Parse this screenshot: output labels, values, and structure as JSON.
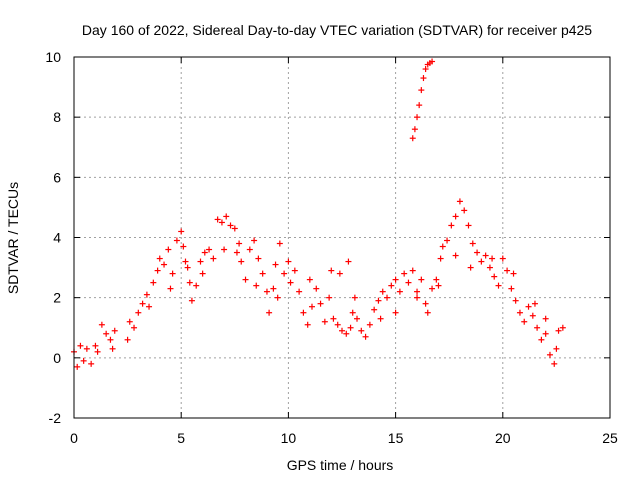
{
  "chart_data": {
    "type": "scatter",
    "title": "Day 160 of 2022, Sidereal Day-to-day VTEC variation (SDTVAR) for receiver p425",
    "xlabel": "GPS time / hours",
    "ylabel": "SDTVAR / TECUs",
    "xlim": [
      0,
      25
    ],
    "ylim": [
      -2,
      10
    ],
    "xticks": [
      0,
      5,
      10,
      15,
      20,
      25
    ],
    "xtick_labels": [
      "0",
      "5",
      "10",
      "15",
      "20",
      "25"
    ],
    "yticks": [
      -2,
      0,
      2,
      4,
      6,
      8,
      10
    ],
    "ytick_labels": [
      "-2",
      "0",
      "2",
      "4",
      "6",
      "8",
      "10"
    ],
    "grid": true,
    "marker": "+",
    "series_color": "#ff0000",
    "series": [
      {
        "name": "SDTVAR",
        "points": [
          [
            0.0,
            0.2
          ],
          [
            0.15,
            -0.3
          ],
          [
            0.3,
            0.4
          ],
          [
            0.45,
            -0.1
          ],
          [
            0.6,
            0.3
          ],
          [
            0.8,
            -0.2
          ],
          [
            1.0,
            0.4
          ],
          [
            1.1,
            0.2
          ],
          [
            1.3,
            1.1
          ],
          [
            1.5,
            0.8
          ],
          [
            1.7,
            0.6
          ],
          [
            1.8,
            0.3
          ],
          [
            1.9,
            0.9
          ],
          [
            2.5,
            0.6
          ],
          [
            2.6,
            1.2
          ],
          [
            2.8,
            1.0
          ],
          [
            3.0,
            1.5
          ],
          [
            3.2,
            1.8
          ],
          [
            3.4,
            2.1
          ],
          [
            3.5,
            1.7
          ],
          [
            3.7,
            2.5
          ],
          [
            3.9,
            2.9
          ],
          [
            4.0,
            3.3
          ],
          [
            4.2,
            3.1
          ],
          [
            4.4,
            3.6
          ],
          [
            4.6,
            2.8
          ],
          [
            4.8,
            3.9
          ],
          [
            5.0,
            4.2
          ],
          [
            5.1,
            3.7
          ],
          [
            5.2,
            3.2
          ],
          [
            5.4,
            2.5
          ],
          [
            5.5,
            1.9
          ],
          [
            5.7,
            2.4
          ],
          [
            5.9,
            3.2
          ],
          [
            6.1,
            3.5
          ],
          [
            6.3,
            3.6
          ],
          [
            6.5,
            3.3
          ],
          [
            6.7,
            4.6
          ],
          [
            6.9,
            4.5
          ],
          [
            7.1,
            4.7
          ],
          [
            7.3,
            4.4
          ],
          [
            7.5,
            4.3
          ],
          [
            7.6,
            3.5
          ],
          [
            7.7,
            3.8
          ],
          [
            7.8,
            3.2
          ],
          [
            8.0,
            2.6
          ],
          [
            8.2,
            3.6
          ],
          [
            8.4,
            3.9
          ],
          [
            8.6,
            3.3
          ],
          [
            8.8,
            2.8
          ],
          [
            9.0,
            2.2
          ],
          [
            9.1,
            1.5
          ],
          [
            9.3,
            2.3
          ],
          [
            9.4,
            3.1
          ],
          [
            9.6,
            3.8
          ],
          [
            9.8,
            2.8
          ],
          [
            10.0,
            3.2
          ],
          [
            10.1,
            2.5
          ],
          [
            10.3,
            2.9
          ],
          [
            10.5,
            2.2
          ],
          [
            10.7,
            1.5
          ],
          [
            10.9,
            1.1
          ],
          [
            11.1,
            1.7
          ],
          [
            11.3,
            2.3
          ],
          [
            11.5,
            1.8
          ],
          [
            11.7,
            1.2
          ],
          [
            11.9,
            2.0
          ],
          [
            12.1,
            1.3
          ],
          [
            12.3,
            1.1
          ],
          [
            12.5,
            0.9
          ],
          [
            12.7,
            0.8
          ],
          [
            12.9,
            1.0
          ],
          [
            13.0,
            1.5
          ],
          [
            13.2,
            1.3
          ],
          [
            13.4,
            0.9
          ],
          [
            13.6,
            0.7
          ],
          [
            13.8,
            1.1
          ],
          [
            14.0,
            1.6
          ],
          [
            14.2,
            1.9
          ],
          [
            14.4,
            2.2
          ],
          [
            14.6,
            2.0
          ],
          [
            14.8,
            2.4
          ],
          [
            15.0,
            2.6
          ],
          [
            15.2,
            2.2
          ],
          [
            15.4,
            2.8
          ],
          [
            15.6,
            2.5
          ],
          [
            15.8,
            2.9
          ],
          [
            16.0,
            2.2
          ],
          [
            16.2,
            2.6
          ],
          [
            16.4,
            1.8
          ],
          [
            16.5,
            1.5
          ],
          [
            16.7,
            2.3
          ],
          [
            16.9,
            2.6
          ],
          [
            17.1,
            3.3
          ],
          [
            17.2,
            3.7
          ],
          [
            17.4,
            3.9
          ],
          [
            17.6,
            4.4
          ],
          [
            17.8,
            4.7
          ],
          [
            18.0,
            5.2
          ],
          [
            18.2,
            4.9
          ],
          [
            18.4,
            4.4
          ],
          [
            18.6,
            3.8
          ],
          [
            18.8,
            3.5
          ],
          [
            19.0,
            3.2
          ],
          [
            19.2,
            3.4
          ],
          [
            19.4,
            3.0
          ],
          [
            19.6,
            2.7
          ],
          [
            19.8,
            2.4
          ],
          [
            20.0,
            3.3
          ],
          [
            20.2,
            2.9
          ],
          [
            20.4,
            2.3
          ],
          [
            20.6,
            1.9
          ],
          [
            20.8,
            1.5
          ],
          [
            21.0,
            1.2
          ],
          [
            21.2,
            1.7
          ],
          [
            21.4,
            1.4
          ],
          [
            21.6,
            1.0
          ],
          [
            21.8,
            0.6
          ],
          [
            22.0,
            0.8
          ],
          [
            22.2,
            0.1
          ],
          [
            22.4,
            -0.2
          ],
          [
            22.5,
            0.3
          ],
          [
            22.6,
            0.9
          ],
          [
            22.8,
            1.0
          ],
          [
            11.0,
            2.6
          ],
          [
            12.0,
            2.9
          ],
          [
            12.4,
            2.8
          ],
          [
            12.8,
            3.2
          ],
          [
            13.1,
            2.0
          ],
          [
            14.3,
            1.3
          ],
          [
            15.0,
            1.5
          ],
          [
            16.0,
            2.0
          ],
          [
            17.0,
            2.4
          ],
          [
            17.8,
            3.4
          ],
          [
            18.5,
            3.0
          ],
          [
            19.5,
            3.3
          ],
          [
            20.5,
            2.8
          ],
          [
            21.5,
            1.8
          ],
          [
            22.0,
            1.3
          ],
          [
            6.0,
            2.8
          ],
          [
            7.0,
            3.6
          ],
          [
            8.5,
            2.4
          ],
          [
            9.5,
            2.0
          ],
          [
            4.5,
            2.3
          ],
          [
            5.3,
            3.0
          ],
          [
            15.8,
            7.3
          ],
          [
            15.9,
            7.6
          ],
          [
            16.0,
            8.0
          ],
          [
            16.1,
            8.4
          ],
          [
            16.2,
            8.9
          ],
          [
            16.3,
            9.3
          ],
          [
            16.4,
            9.6
          ],
          [
            16.5,
            9.75
          ],
          [
            16.6,
            9.8
          ],
          [
            16.7,
            9.85
          ]
        ]
      }
    ]
  }
}
